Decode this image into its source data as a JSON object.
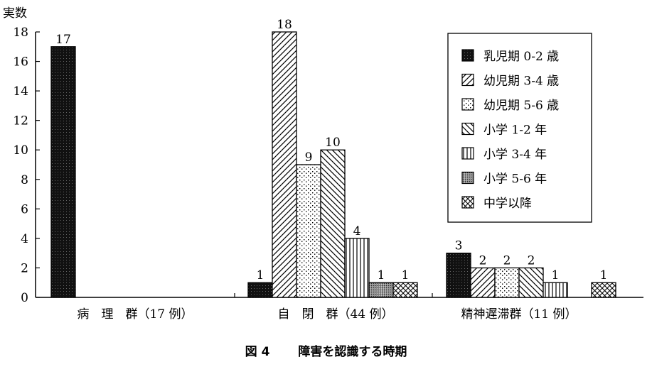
{
  "chart_data": {
    "type": "bar",
    "ylabel": "実数",
    "ylim": [
      0,
      18
    ],
    "yticks": [
      0,
      2,
      4,
      6,
      8,
      10,
      12,
      14,
      16,
      18
    ],
    "grid": false,
    "legend_position": "top-right",
    "categories": [
      "病　理　群（17 例）",
      "自　閉　群（44 例）",
      "精神遅滞群（11 例）"
    ],
    "series": [
      {
        "name": "乳児期 0-2 歳",
        "pattern": "dark",
        "values": [
          17,
          1,
          3
        ]
      },
      {
        "name": "幼児期 3-4 歳",
        "pattern": "diagonal-up",
        "values": [
          0,
          18,
          2
        ]
      },
      {
        "name": "幼児期 5-6 歳",
        "pattern": "dots",
        "values": [
          0,
          9,
          2
        ]
      },
      {
        "name": "小学 1-2 年",
        "pattern": "diagonal-down",
        "values": [
          0,
          10,
          2
        ]
      },
      {
        "name": "小学 3-4 年",
        "pattern": "vertical",
        "values": [
          0,
          4,
          1
        ]
      },
      {
        "name": "小学 5-6 年",
        "pattern": "dense-dots",
        "values": [
          0,
          1,
          0
        ]
      },
      {
        "name": "中学以降",
        "pattern": "crosshatch",
        "values": [
          0,
          1,
          1
        ]
      }
    ]
  },
  "caption": {
    "number": "図 4",
    "title": "障害を認識する時期"
  }
}
